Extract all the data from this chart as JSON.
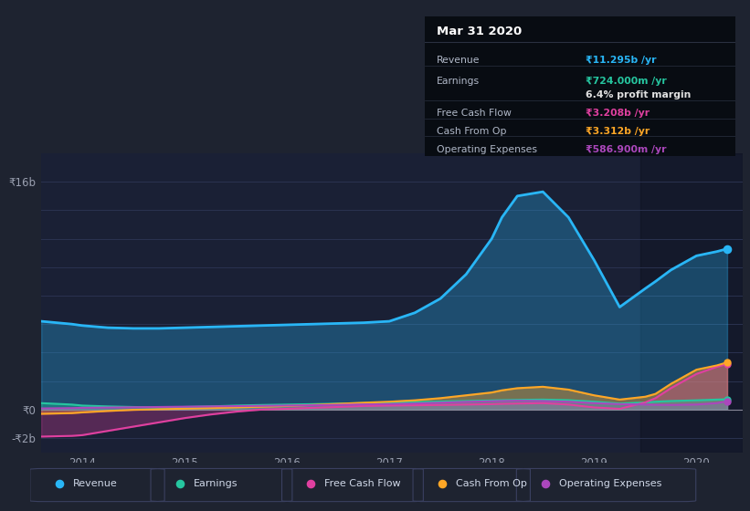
{
  "bg_color": "#1e2330",
  "plot_bg_color": "#1a2035",
  "grid_color": "#2a3250",
  "title_text": "Mar 31 2020",
  "ylim": [
    -3000000000.0,
    18000000000.0
  ],
  "xlim_start": 2013.6,
  "xlim_end": 2020.45,
  "legend_items": [
    {
      "label": "Revenue",
      "color": "#29b6f6"
    },
    {
      "label": "Earnings",
      "color": "#26c6a0"
    },
    {
      "label": "Free Cash Flow",
      "color": "#e040a0"
    },
    {
      "label": "Cash From Op",
      "color": "#ffa726"
    },
    {
      "label": "Operating Expenses",
      "color": "#ab47bc"
    }
  ],
  "x_years": [
    2013.6,
    2013.9,
    2014.0,
    2014.25,
    2014.5,
    2014.75,
    2015.0,
    2015.25,
    2015.5,
    2015.75,
    2016.0,
    2016.25,
    2016.5,
    2016.75,
    2017.0,
    2017.25,
    2017.5,
    2017.75,
    2018.0,
    2018.1,
    2018.25,
    2018.5,
    2018.75,
    2019.0,
    2019.25,
    2019.5,
    2019.6,
    2019.75,
    2020.0,
    2020.2,
    2020.3
  ],
  "revenue": [
    6200000000.0,
    6000000000.0,
    5900000000.0,
    5750000000.0,
    5700000000.0,
    5700000000.0,
    5750000000.0,
    5800000000.0,
    5850000000.0,
    5900000000.0,
    5950000000.0,
    6000000000.0,
    6050000000.0,
    6100000000.0,
    6200000000.0,
    6800000000.0,
    7800000000.0,
    9500000000.0,
    12000000000.0,
    13500000000.0,
    15000000000.0,
    15300000000.0,
    13500000000.0,
    10500000000.0,
    7200000000.0,
    8500000000.0,
    9000000000.0,
    9800000000.0,
    10800000000.0,
    11100000000.0,
    11295000000.0
  ],
  "earnings": [
    450000000.0,
    350000000.0,
    280000000.0,
    220000000.0,
    180000000.0,
    150000000.0,
    180000000.0,
    220000000.0,
    280000000.0,
    320000000.0,
    350000000.0,
    380000000.0,
    420000000.0,
    450000000.0,
    480000000.0,
    520000000.0,
    560000000.0,
    600000000.0,
    640000000.0,
    660000000.0,
    680000000.0,
    700000000.0,
    660000000.0,
    550000000.0,
    420000000.0,
    500000000.0,
    550000000.0,
    600000000.0,
    650000000.0,
    700000000.0,
    724000000.0
  ],
  "free_cash_flow": [
    -1900000000.0,
    -1850000000.0,
    -1800000000.0,
    -1500000000.0,
    -1200000000.0,
    -900000000.0,
    -600000000.0,
    -350000000.0,
    -150000000.0,
    0.0,
    50000000.0,
    120000000.0,
    180000000.0,
    250000000.0,
    280000000.0,
    300000000.0,
    320000000.0,
    350000000.0,
    380000000.0,
    400000000.0,
    420000000.0,
    450000000.0,
    350000000.0,
    150000000.0,
    50000000.0,
    500000000.0,
    800000000.0,
    1500000000.0,
    2500000000.0,
    3000000000.0,
    3208000000.0
  ],
  "cash_from_op": [
    -300000000.0,
    -250000000.0,
    -200000000.0,
    -100000000.0,
    -20000000.0,
    20000000.0,
    60000000.0,
    100000000.0,
    150000000.0,
    200000000.0,
    250000000.0,
    320000000.0,
    400000000.0,
    480000000.0,
    550000000.0,
    650000000.0,
    800000000.0,
    1000000000.0,
    1200000000.0,
    1350000000.0,
    1500000000.0,
    1600000000.0,
    1400000000.0,
    1000000000.0,
    700000000.0,
    900000000.0,
    1100000000.0,
    1800000000.0,
    2800000000.0,
    3100000000.0,
    3312000000.0
  ],
  "operating_expenses": [
    80000000.0,
    100000000.0,
    120000000.0,
    140000000.0,
    160000000.0,
    180000000.0,
    200000000.0,
    220000000.0,
    240000000.0,
    260000000.0,
    280000000.0,
    300000000.0,
    330000000.0,
    360000000.0,
    380000000.0,
    420000000.0,
    480000000.0,
    540000000.0,
    580000000.0,
    600000000.0,
    620000000.0,
    600000000.0,
    550000000.0,
    450000000.0,
    380000000.0,
    350000000.0,
    330000000.0,
    320000000.0,
    350000000.0,
    450000000.0,
    586900000.0
  ],
  "shaded_region_start": 2019.45,
  "shaded_region_end": 2020.45,
  "table_rows": [
    {
      "label": "Revenue",
      "value": "₹11.295b /yr",
      "value_color": "#29b6f6"
    },
    {
      "label": "Earnings",
      "value": "₹724.000m /yr",
      "value_color": "#26c6a0"
    },
    {
      "label": "",
      "value": "6.4% profit margin",
      "value_color": "#e0e0e0"
    },
    {
      "label": "Free Cash Flow",
      "value": "₹3.208b /yr",
      "value_color": "#e040a0"
    },
    {
      "label": "Cash From Op",
      "value": "₹3.312b /yr",
      "value_color": "#ffa726"
    },
    {
      "label": "Operating Expenses",
      "value": "₹586.900m /yr",
      "value_color": "#ab47bc"
    }
  ]
}
